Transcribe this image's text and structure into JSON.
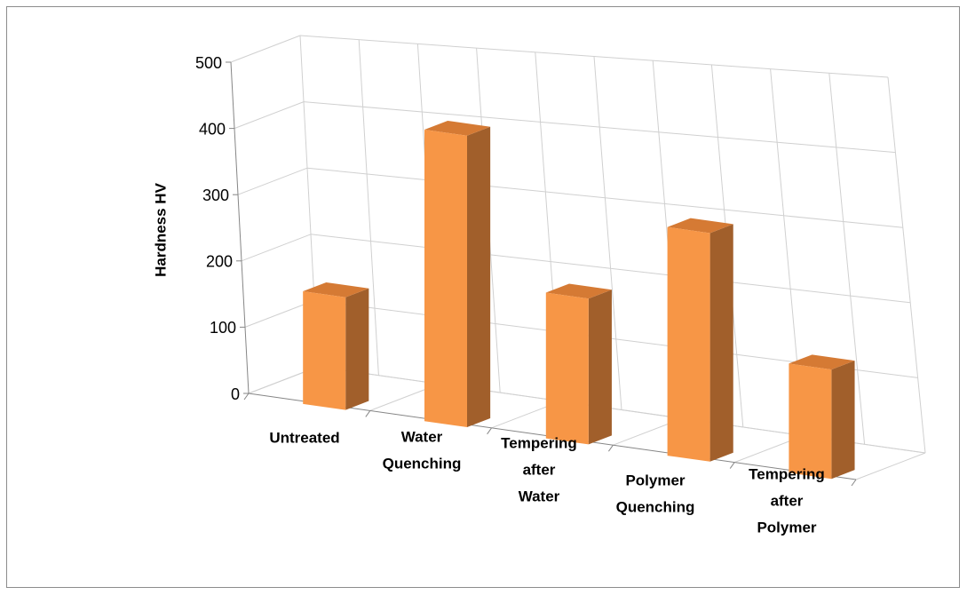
{
  "chart_data": {
    "type": "bar",
    "style": "3d-column",
    "categories": [
      [
        "Untreated"
      ],
      [
        "Water",
        "Quenching"
      ],
      [
        "Tempering",
        "after",
        "Water"
      ],
      [
        "Polymer",
        "Quenching"
      ],
      [
        "Tempering",
        "after",
        "Polymer"
      ]
    ],
    "values": [
      170,
      440,
      220,
      345,
      165
    ],
    "ylabel": "Hardness HV",
    "xlabel": "",
    "title": "",
    "ylim": [
      0,
      500
    ],
    "yticks": [
      0,
      100,
      200,
      300,
      400,
      500
    ],
    "grid": true,
    "legend": "none",
    "colors": {
      "bar_front": "#f79646",
      "bar_side": "#a15f2b",
      "bar_top": "#d57a34",
      "grid": "#d0d0d0",
      "axis": "#868686",
      "frame": "#8c8c8c"
    }
  }
}
